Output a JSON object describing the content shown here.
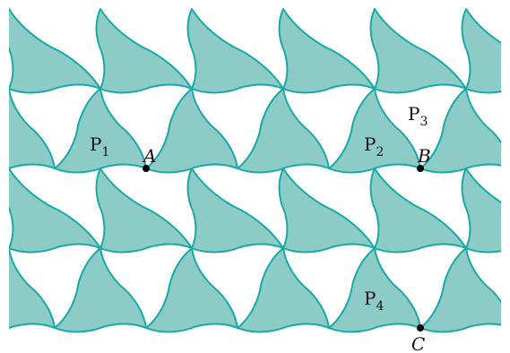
{
  "colors": {
    "fill": "#8CCBC6",
    "stroke": "#16A9A9",
    "background": "#FFFFFF",
    "point": "#000000"
  },
  "regions": [
    {
      "letter": "P",
      "sub": "1"
    },
    {
      "letter": "P",
      "sub": "2"
    },
    {
      "letter": "P",
      "sub": "3"
    },
    {
      "letter": "P",
      "sub": "4"
    }
  ],
  "points": [
    {
      "label": "A"
    },
    {
      "label": "B"
    },
    {
      "label": "C"
    }
  ]
}
